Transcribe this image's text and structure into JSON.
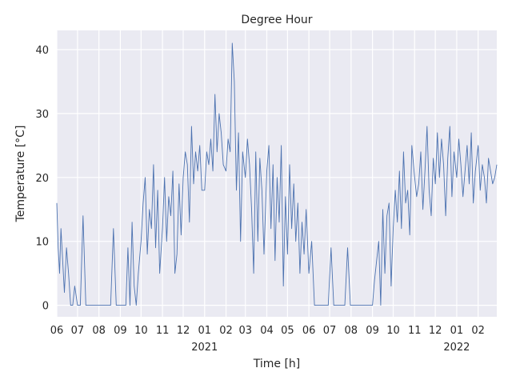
{
  "chart_data": {
    "type": "line",
    "title": "Degree Hour",
    "xlabel": "Time [h]",
    "ylabel": "Temperature [°C]",
    "ylim": [
      -1.8,
      43
    ],
    "xlim": [
      "2020-06-01",
      "2022-02-28"
    ],
    "grid": true,
    "style": {
      "background": "#eaeaf2",
      "grid_color": "#ffffff",
      "line_color": "#4c72b0"
    },
    "y_ticks": [
      0,
      10,
      20,
      30,
      40
    ],
    "x_ticks": [
      {
        "date": "2020-06-01",
        "label": "06",
        "year": ""
      },
      {
        "date": "2020-07-01",
        "label": "07",
        "year": ""
      },
      {
        "date": "2020-08-01",
        "label": "08",
        "year": ""
      },
      {
        "date": "2020-09-01",
        "label": "09",
        "year": ""
      },
      {
        "date": "2020-10-01",
        "label": "10",
        "year": ""
      },
      {
        "date": "2020-11-01",
        "label": "11",
        "year": ""
      },
      {
        "date": "2020-12-01",
        "label": "12",
        "year": ""
      },
      {
        "date": "2021-01-01",
        "label": "01",
        "year": "2021"
      },
      {
        "date": "2021-02-01",
        "label": "02",
        "year": ""
      },
      {
        "date": "2021-03-01",
        "label": "03",
        "year": ""
      },
      {
        "date": "2021-04-01",
        "label": "04",
        "year": ""
      },
      {
        "date": "2021-05-01",
        "label": "05",
        "year": ""
      },
      {
        "date": "2021-06-01",
        "label": "06",
        "year": ""
      },
      {
        "date": "2021-07-01",
        "label": "07",
        "year": ""
      },
      {
        "date": "2021-08-01",
        "label": "08",
        "year": ""
      },
      {
        "date": "2021-09-01",
        "label": "09",
        "year": ""
      },
      {
        "date": "2021-10-01",
        "label": "10",
        "year": ""
      },
      {
        "date": "2021-11-01",
        "label": "11",
        "year": ""
      },
      {
        "date": "2021-12-01",
        "label": "12",
        "year": ""
      },
      {
        "date": "2022-01-01",
        "label": "01",
        "year": "2022"
      },
      {
        "date": "2022-02-01",
        "label": "02",
        "year": ""
      }
    ],
    "series": [
      {
        "x": [
          "2020-06-01",
          "2020-06-03",
          "2020-06-05",
          "2020-06-07",
          "2020-06-09",
          "2020-06-12",
          "2020-06-15",
          "2020-06-18",
          "2020-06-21",
          "2020-06-24",
          "2020-06-27",
          "2020-07-01",
          "2020-07-05",
          "2020-07-09",
          "2020-07-13",
          "2020-07-17",
          "2020-07-21",
          "2020-07-25",
          "2020-07-29",
          "2020-08-02",
          "2020-08-06",
          "2020-08-10",
          "2020-08-14",
          "2020-08-18",
          "2020-08-22",
          "2020-08-26",
          "2020-08-30",
          "2020-09-03",
          "2020-09-06",
          "2020-09-09",
          "2020-09-12",
          "2020-09-15",
          "2020-09-18",
          "2020-09-21",
          "2020-09-24",
          "2020-09-27",
          "2020-10-01",
          "2020-10-04",
          "2020-10-07",
          "2020-10-10",
          "2020-10-13",
          "2020-10-16",
          "2020-10-19",
          "2020-10-22",
          "2020-10-25",
          "2020-10-28",
          "2020-11-01",
          "2020-11-04",
          "2020-11-07",
          "2020-11-10",
          "2020-11-13",
          "2020-11-16",
          "2020-11-19",
          "2020-11-22",
          "2020-11-25",
          "2020-11-28",
          "2020-12-01",
          "2020-12-04",
          "2020-12-07",
          "2020-12-10",
          "2020-12-13",
          "2020-12-16",
          "2020-12-19",
          "2020-12-22",
          "2020-12-25",
          "2020-12-28",
          "2021-01-01",
          "2021-01-04",
          "2021-01-07",
          "2021-01-10",
          "2021-01-13",
          "2021-01-16",
          "2021-01-19",
          "2021-01-22",
          "2021-01-25",
          "2021-01-28",
          "2021-02-01",
          "2021-02-04",
          "2021-02-07",
          "2021-02-10",
          "2021-02-13",
          "2021-02-16",
          "2021-02-19",
          "2021-02-22",
          "2021-02-25",
          "2021-03-01",
          "2021-03-04",
          "2021-03-07",
          "2021-03-10",
          "2021-03-13",
          "2021-03-16",
          "2021-03-19",
          "2021-03-22",
          "2021-03-25",
          "2021-03-28",
          "2021-04-01",
          "2021-04-04",
          "2021-04-07",
          "2021-04-10",
          "2021-04-13",
          "2021-04-16",
          "2021-04-19",
          "2021-04-22",
          "2021-04-25",
          "2021-04-28",
          "2021-05-01",
          "2021-05-04",
          "2021-05-07",
          "2021-05-10",
          "2021-05-13",
          "2021-05-16",
          "2021-05-19",
          "2021-05-22",
          "2021-05-25",
          "2021-05-28",
          "2021-06-01",
          "2021-06-05",
          "2021-06-09",
          "2021-06-13",
          "2021-06-17",
          "2021-06-21",
          "2021-06-25",
          "2021-06-29",
          "2021-07-03",
          "2021-07-07",
          "2021-07-11",
          "2021-07-15",
          "2021-07-19",
          "2021-07-23",
          "2021-07-27",
          "2021-07-31",
          "2021-08-04",
          "2021-08-08",
          "2021-08-12",
          "2021-08-16",
          "2021-08-20",
          "2021-08-24",
          "2021-08-28",
          "2021-09-01",
          "2021-09-04",
          "2021-09-07",
          "2021-09-10",
          "2021-09-13",
          "2021-09-16",
          "2021-09-19",
          "2021-09-22",
          "2021-09-25",
          "2021-09-28",
          "2021-10-01",
          "2021-10-04",
          "2021-10-07",
          "2021-10-10",
          "2021-10-13",
          "2021-10-16",
          "2021-10-19",
          "2021-10-22",
          "2021-10-25",
          "2021-10-28",
          "2021-11-01",
          "2021-11-04",
          "2021-11-07",
          "2021-11-10",
          "2021-11-13",
          "2021-11-16",
          "2021-11-19",
          "2021-11-22",
          "2021-11-25",
          "2021-11-28",
          "2021-12-01",
          "2021-12-04",
          "2021-12-07",
          "2021-12-10",
          "2021-12-13",
          "2021-12-16",
          "2021-12-19",
          "2021-12-22",
          "2021-12-25",
          "2021-12-28",
          "2022-01-01",
          "2022-01-04",
          "2022-01-07",
          "2022-01-10",
          "2022-01-13",
          "2022-01-16",
          "2022-01-19",
          "2022-01-22",
          "2022-01-25",
          "2022-01-28",
          "2022-02-01",
          "2022-02-04",
          "2022-02-07",
          "2022-02-10",
          "2022-02-13",
          "2022-02-16",
          "2022-02-19",
          "2022-02-22",
          "2022-02-25",
          "2022-02-28"
        ],
        "y": [
          16,
          9,
          5,
          12,
          8,
          2,
          9,
          5,
          0,
          0,
          3,
          0,
          0,
          14,
          0,
          0,
          0,
          0,
          0,
          0,
          0,
          0,
          0,
          0,
          12,
          0,
          0,
          0,
          0,
          0,
          9,
          0,
          13,
          3,
          0,
          5,
          10,
          16,
          20,
          8,
          15,
          12,
          22,
          9,
          18,
          5,
          12,
          20,
          10,
          17,
          14,
          21,
          5,
          8,
          19,
          11,
          20,
          24,
          22,
          13,
          28,
          19,
          24,
          21,
          25,
          18,
          18,
          24,
          22,
          26,
          21,
          33,
          24,
          30,
          27,
          22,
          21,
          26,
          24,
          41,
          35,
          18,
          27,
          10,
          24,
          20,
          26,
          22,
          15,
          5,
          24,
          10,
          23,
          18,
          8,
          21,
          25,
          12,
          22,
          7,
          20,
          13,
          25,
          3,
          17,
          8,
          22,
          12,
          19,
          10,
          16,
          5,
          13,
          8,
          15,
          5,
          10,
          0,
          0,
          0,
          0,
          0,
          0,
          9,
          0,
          0,
          0,
          0,
          0,
          9,
          0,
          0,
          0,
          0,
          0,
          0,
          0,
          0,
          0,
          4,
          7,
          10,
          0,
          15,
          5,
          14,
          16,
          3,
          12,
          18,
          13,
          21,
          12,
          24,
          16,
          18,
          11,
          25,
          20,
          17,
          19,
          24,
          15,
          21,
          28,
          18,
          14,
          23,
          19,
          27,
          20,
          26,
          22,
          14,
          23,
          28,
          17,
          24,
          20,
          26,
          22,
          17,
          21,
          25,
          19,
          27,
          16,
          21,
          25,
          18,
          22,
          20,
          16,
          23,
          21,
          19,
          20,
          22
        ]
      }
    ]
  }
}
